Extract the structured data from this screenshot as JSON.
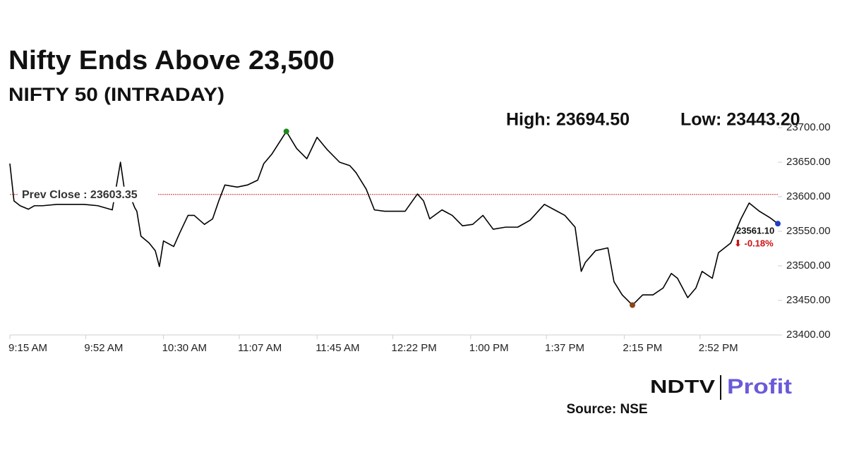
{
  "chart_data": {
    "type": "line",
    "title": "Nifty Ends Above 23,500",
    "subtitle": "NIFTY 50 (INTRADAY)",
    "high_label": "High: 23694.50",
    "low_label": "Low: 23443.20",
    "x": [
      "9:15 AM",
      "9:17 AM",
      "9:20 AM",
      "9:24 AM",
      "9:27 AM",
      "9:31 AM",
      "9:38 AM",
      "9:45 AM",
      "9:51 AM",
      "9:58 AM",
      "10:05 AM",
      "10:09 AM",
      "10:11 AM",
      "10:14 AM",
      "10:16 AM",
      "10:17 AM",
      "10:19 AM",
      "10:23 AM",
      "10:26 AM",
      "10:28 AM",
      "10:30 AM",
      "10:35 AM",
      "10:38 AM",
      "10:42 AM",
      "10:45 AM",
      "10:50 AM",
      "10:54 AM",
      "10:57 AM",
      "11:00 AM",
      "11:06 AM",
      "11:11 AM",
      "11:16 AM",
      "11:19 AM",
      "11:23 AM",
      "11:26 AM",
      "11:30 AM",
      "11:35 AM",
      "11:40 AM",
      "11:45 AM",
      "11:50 AM",
      "11:56 AM",
      "12:01 PM",
      "12:04 PM",
      "12:09 PM",
      "12:13 PM",
      "12:18 PM",
      "12:23 PM",
      "12:28 PM",
      "12:34 PM",
      "12:37 PM",
      "12:40 PM",
      "12:46 PM",
      "12:51 PM",
      "12:56 PM",
      "1:01 PM",
      "1:06 PM",
      "1:11 PM",
      "1:17 PM",
      "1:23 PM",
      "1:29 PM",
      "1:36 PM",
      "1:41 PM",
      "1:46 PM",
      "1:51 PM",
      "1:54 PM",
      "1:56 PM",
      "2:01 PM",
      "2:07 PM",
      "2:10 PM",
      "2:14 PM",
      "2:19 PM",
      "2:24 PM",
      "2:29 PM",
      "2:34 PM",
      "2:38 PM",
      "2:41 PM",
      "2:46 PM",
      "2:50 PM",
      "2:53 PM",
      "2:58 PM",
      "3:01 PM",
      "3:07 PM",
      "3:12 PM",
      "3:16 PM",
      "3:21 PM",
      "3:26 PM",
      "3:30 PM"
    ],
    "series": [
      {
        "name": "NIFTY 50",
        "color": "#000000",
        "values": [
          23648,
          23594,
          23587,
          23582,
          23587,
          23587,
          23589,
          23589,
          23589,
          23587,
          23581,
          23650,
          23609,
          23599,
          23584,
          23579,
          23543,
          23533,
          23522,
          23499,
          23536,
          23528,
          23548,
          23573,
          23573,
          23560,
          23568,
          23594,
          23617,
          23614,
          23617,
          23624,
          23648,
          23662,
          23676,
          23694.5,
          23670,
          23655,
          23686,
          23668,
          23650,
          23645,
          23635,
          23611,
          23581,
          23579,
          23579,
          23579,
          23604,
          23594,
          23568,
          23581,
          23573,
          23558,
          23560,
          23573,
          23553,
          23556,
          23556,
          23566,
          23589,
          23581,
          23573,
          23556,
          23492,
          23505,
          23522,
          23526,
          23477,
          23458,
          23443.2,
          23458,
          23458,
          23468,
          23489,
          23482,
          23454,
          23468,
          23492,
          23482,
          23519,
          23533,
          23568,
          23591,
          23579,
          23570,
          23561.1
        ]
      }
    ],
    "high_color": "#1a8a1a",
    "low_color": "#8b4513",
    "last_color": "#1f3fbf",
    "last_label": "23561.10",
    "change_label": "⬇ -0.18%",
    "change_color": "#cc1111",
    "prev_close": {
      "value": 23603.35,
      "label": "Prev Close : 23603.35"
    },
    "prev_close_color": "#d03030",
    "ylim": [
      23400,
      23700
    ],
    "yticks": [
      {
        "value": 23400,
        "label": "23400.00"
      },
      {
        "value": 23450,
        "label": "23450.00"
      },
      {
        "value": 23500,
        "label": "23500.00"
      },
      {
        "value": 23550,
        "label": "23550.00"
      },
      {
        "value": 23600,
        "label": "23600.00"
      },
      {
        "value": 23650,
        "label": "23650.00"
      },
      {
        "value": 23700,
        "label": "23700.00"
      }
    ],
    "xticks": [
      "9:15 AM",
      "9:52 AM",
      "10:30 AM",
      "11:07 AM",
      "11:45 AM",
      "12:22 PM",
      "1:00 PM",
      "1:37 PM",
      "2:15 PM",
      "2:52 PM"
    ],
    "xlim": [
      "9:15 AM",
      "3:30 PM"
    ],
    "logo": {
      "left": "NDTV",
      "right": "Profit"
    },
    "source": "Source: NSE"
  }
}
